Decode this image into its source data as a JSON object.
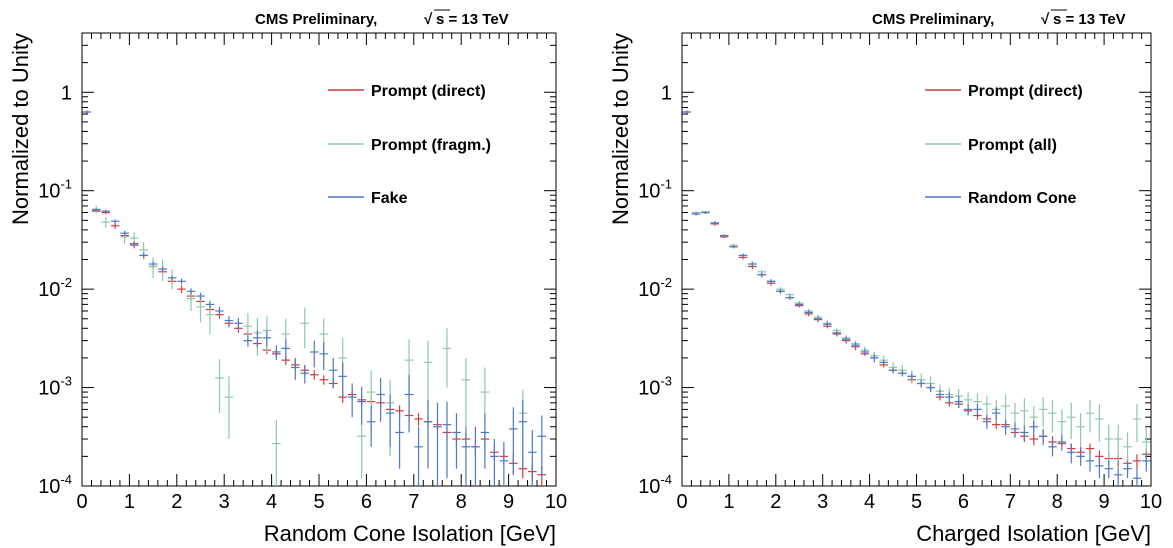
{
  "chart_data": [
    {
      "type": "scatter",
      "header": "CMS Preliminary,",
      "energy_label": "s = 13 TeV",
      "energy_root": "√",
      "xlabel": "Random Cone Isolation [GeV]",
      "ylabel": "Normalized to Unity",
      "xlim": [
        0,
        10
      ],
      "ylim": [
        0.0001,
        4
      ],
      "yscale": "log",
      "xticks": [
        "0",
        "1",
        "2",
        "3",
        "4",
        "5",
        "6",
        "7",
        "8",
        "9",
        "10"
      ],
      "yticks": [
        {
          "base": "10",
          "exp": "-4",
          "value": 0.0001
        },
        {
          "base": "10",
          "exp": "-3",
          "value": 0.001
        },
        {
          "base": "10",
          "exp": "-2",
          "value": 0.01
        },
        {
          "base": "10",
          "exp": "-1",
          "value": 0.1
        },
        {
          "base": "1",
          "exp": "",
          "value": 1
        }
      ],
      "legend_position": "top-right",
      "bin_width": 0.2,
      "series": [
        {
          "name": "Prompt (direct)",
          "color": "#d23b3b",
          "x": [
            0.1,
            0.3,
            0.5,
            0.7,
            0.9,
            1.1,
            1.3,
            1.5,
            1.7,
            1.9,
            2.1,
            2.3,
            2.5,
            2.7,
            2.9,
            3.1,
            3.3,
            3.5,
            3.7,
            3.9,
            4.1,
            4.3,
            4.5,
            4.7,
            4.9,
            5.1,
            5.3,
            5.5,
            5.7,
            5.9,
            6.1,
            6.3,
            6.5,
            6.7,
            6.9,
            7.1,
            7.3,
            7.5,
            7.7,
            7.9,
            8.1,
            8.3,
            8.5,
            8.7,
            8.9,
            9.1,
            9.3,
            9.5,
            9.7
          ],
          "y": [
            0.63,
            0.062,
            0.06,
            0.044,
            0.035,
            0.028,
            0.022,
            0.017,
            0.015,
            0.012,
            0.01,
            0.0085,
            0.0075,
            0.0062,
            0.0055,
            0.0045,
            0.004,
            0.0035,
            0.0028,
            0.0024,
            0.0022,
            0.0019,
            0.0017,
            0.0015,
            0.00135,
            0.0012,
            0.0011,
            0.0008,
            0.00085,
            0.00075,
            0.00072,
            0.0007,
            0.0006,
            0.00058,
            0.00052,
            0.00048,
            0.00045,
            0.00042,
            0.00035,
            0.0003,
            0.0003,
            0.00025,
            0.0003,
            0.00022,
            0.0002,
            0.00017,
            0.00015,
            0.00014,
            0.00013
          ],
          "err": [
            0.02,
            0.002,
            0.002,
            0.003,
            0.002,
            0.002,
            0.002,
            0.0015,
            0.0012,
            0.001,
            0.0009,
            0.0008,
            0.0006,
            0.0005,
            0.0005,
            0.0004,
            0.0004,
            0.0003,
            0.00025,
            0.0002,
            0.0002,
            0.0002,
            0.00018,
            0.00016,
            0.00015,
            0.00013,
            0.00012,
            0.0001,
            0.0001,
            0.0001,
            0.0001,
            0.0001,
            8e-05,
            8e-05,
            7e-05,
            7e-05,
            7e-05,
            6e-05,
            6e-05,
            5e-05,
            5e-05,
            5e-05,
            5e-05,
            4e-05,
            4e-05,
            4e-05,
            3e-05,
            3e-05,
            3e-05
          ]
        },
        {
          "name": "Prompt (fragm.)",
          "color": "#8ec8ad",
          "x": [
            0.3,
            0.5,
            0.9,
            1.1,
            1.3,
            1.5,
            1.7,
            1.9,
            2.3,
            2.5,
            2.7,
            2.9,
            3.1,
            3.5,
            3.7,
            3.9,
            4.1,
            4.3,
            4.7,
            5.1,
            5.5,
            5.9,
            6.1,
            6.5,
            6.9,
            7.3,
            7.7,
            8.1,
            8.5,
            9.3
          ],
          "y": [
            0.065,
            0.048,
            0.034,
            0.033,
            0.025,
            0.017,
            0.016,
            0.013,
            0.008,
            0.0066,
            0.0055,
            0.00125,
            0.0008,
            0.0042,
            0.0036,
            0.0038,
            0.00027,
            0.0035,
            0.0045,
            0.0035,
            0.002,
            0.00032,
            0.0009,
            0.0007,
            0.0019,
            0.0018,
            0.0025,
            0.0012,
            0.0009,
            0.00055
          ],
          "err": [
            0.006,
            0.006,
            0.005,
            0.005,
            0.005,
            0.004,
            0.004,
            0.003,
            0.002,
            0.002,
            0.002,
            0.0007,
            0.0005,
            0.0015,
            0.0015,
            0.0015,
            0.0002,
            0.0015,
            0.002,
            0.0015,
            0.0012,
            0.0002,
            0.0006,
            0.0005,
            0.0012,
            0.0012,
            0.0015,
            0.0008,
            0.0007,
            0.0004
          ]
        },
        {
          "name": "Fake",
          "color": "#4d79c7",
          "x": [
            0.1,
            0.3,
            0.5,
            0.7,
            0.9,
            1.1,
            1.3,
            1.5,
            1.7,
            1.9,
            2.1,
            2.3,
            2.5,
            2.7,
            2.9,
            3.1,
            3.3,
            3.5,
            3.7,
            3.9,
            4.1,
            4.3,
            4.5,
            4.7,
            4.9,
            5.1,
            5.3,
            5.5,
            5.7,
            5.9,
            6.1,
            6.3,
            6.5,
            6.7,
            6.9,
            7.1,
            7.3,
            7.5,
            7.7,
            7.9,
            8.1,
            8.3,
            8.5,
            8.7,
            8.9,
            9.1,
            9.3,
            9.5,
            9.7
          ],
          "y": [
            0.63,
            0.064,
            0.062,
            0.049,
            0.037,
            0.029,
            0.022,
            0.018,
            0.016,
            0.013,
            0.012,
            0.0095,
            0.0085,
            0.007,
            0.006,
            0.0048,
            0.0045,
            0.003,
            0.0032,
            0.0032,
            0.0023,
            0.0025,
            0.0016,
            0.0014,
            0.0023,
            0.0022,
            0.0015,
            0.0013,
            0.0008,
            0.00072,
            0.00045,
            0.00085,
            0.00055,
            0.00035,
            0.00085,
            0.00025,
            0.00045,
            0.0004,
            0.00042,
            0.00035,
            0.00025,
            0.00025,
            0.00035,
            0.0002,
            0.00018,
            0.00038,
            0.00045,
            0.00022,
            0.00032
          ],
          "err": [
            0.02,
            0.002,
            0.002,
            0.002,
            0.002,
            0.0015,
            0.0012,
            0.001,
            0.001,
            0.0008,
            0.0008,
            0.0007,
            0.0007,
            0.0006,
            0.0006,
            0.0005,
            0.0006,
            0.0004,
            0.0006,
            0.0006,
            0.0004,
            0.0006,
            0.0004,
            0.0003,
            0.0007,
            0.0007,
            0.0005,
            0.0005,
            0.0003,
            0.0003,
            0.0002,
            0.0004,
            0.0003,
            0.0002,
            0.0005,
            0.00015,
            0.0003,
            0.0003,
            0.0003,
            0.0002,
            0.00015,
            0.00015,
            0.0002,
            0.0001,
            0.0001,
            0.00025,
            0.0003,
            0.00015,
            0.0002
          ]
        }
      ]
    },
    {
      "type": "scatter",
      "header": "CMS Preliminary,",
      "energy_label": "s = 13 TeV",
      "energy_root": "√",
      "xlabel": "Charged Isolation [GeV]",
      "ylabel": "Normalized to Unity",
      "xlim": [
        0,
        10
      ],
      "ylim": [
        0.0001,
        4
      ],
      "yscale": "log",
      "xticks": [
        "0",
        "1",
        "2",
        "3",
        "4",
        "5",
        "6",
        "7",
        "8",
        "9",
        "10"
      ],
      "yticks": [
        {
          "base": "10",
          "exp": "-4",
          "value": 0.0001
        },
        {
          "base": "10",
          "exp": "-3",
          "value": 0.001
        },
        {
          "base": "10",
          "exp": "-2",
          "value": 0.01
        },
        {
          "base": "10",
          "exp": "-1",
          "value": 0.1
        },
        {
          "base": "1",
          "exp": "",
          "value": 1
        }
      ],
      "legend_position": "top-right",
      "bin_width": 0.2,
      "series": [
        {
          "name": "Prompt (direct)",
          "color": "#d23b3b",
          "x": [
            0.1,
            0.3,
            0.5,
            0.7,
            0.9,
            1.1,
            1.3,
            1.5,
            1.7,
            1.9,
            2.1,
            2.3,
            2.5,
            2.7,
            2.9,
            3.1,
            3.3,
            3.5,
            3.7,
            3.9,
            4.1,
            4.3,
            4.5,
            4.7,
            4.9,
            5.1,
            5.3,
            5.5,
            5.7,
            5.9,
            6.1,
            6.3,
            6.5,
            6.7,
            6.9,
            7.1,
            7.3,
            7.5,
            7.7,
            7.9,
            8.1,
            8.3,
            8.5,
            8.7,
            8.9,
            9.1,
            9.3,
            9.5,
            9.7,
            9.9
          ],
          "y": [
            0.63,
            0.058,
            0.06,
            0.046,
            0.034,
            0.027,
            0.021,
            0.017,
            0.014,
            0.0115,
            0.0095,
            0.0082,
            0.0068,
            0.0056,
            0.0049,
            0.0042,
            0.0035,
            0.003,
            0.0026,
            0.0022,
            0.002,
            0.0017,
            0.0015,
            0.0014,
            0.0012,
            0.0011,
            0.001,
            0.0008,
            0.0007,
            0.00068,
            0.00058,
            0.00052,
            0.00048,
            0.00042,
            0.00042,
            0.00035,
            0.00032,
            0.0003,
            0.00032,
            0.00028,
            0.00027,
            0.00024,
            0.00022,
            0.00024,
            0.0002,
            0.00019,
            0.00019,
            0.00017,
            0.00018,
            0.00021
          ],
          "err": [
            0.02,
            0.002,
            0.002,
            0.002,
            0.001,
            0.001,
            0.001,
            0.001,
            0.0008,
            0.0006,
            0.0005,
            0.0004,
            0.0003,
            0.0003,
            0.0003,
            0.0002,
            0.0002,
            0.0002,
            0.0002,
            0.0001,
            0.0001,
            0.0001,
            0.0001,
            0.0001,
            0.0001,
            8e-05,
            8e-05,
            6e-05,
            6e-05,
            6e-05,
            5e-05,
            5e-05,
            5e-05,
            4e-05,
            4e-05,
            4e-05,
            4e-05,
            4e-05,
            4e-05,
            4e-05,
            4e-05,
            3e-05,
            3e-05,
            3e-05,
            3e-05,
            3e-05,
            3e-05,
            3e-05,
            3e-05,
            3e-05
          ]
        },
        {
          "name": "Prompt (all)",
          "color": "#8ec8ad",
          "x": [
            0.1,
            0.3,
            0.5,
            0.7,
            0.9,
            1.1,
            1.3,
            1.5,
            1.7,
            1.9,
            2.1,
            2.3,
            2.5,
            2.7,
            2.9,
            3.1,
            3.3,
            3.5,
            3.7,
            3.9,
            4.1,
            4.3,
            4.5,
            4.7,
            4.9,
            5.1,
            5.3,
            5.5,
            5.7,
            5.9,
            6.1,
            6.3,
            6.5,
            6.7,
            6.9,
            7.1,
            7.3,
            7.5,
            7.7,
            7.9,
            8.1,
            8.3,
            8.5,
            8.7,
            8.9,
            9.1,
            9.3,
            9.5,
            9.7,
            9.9
          ],
          "y": [
            0.63,
            0.06,
            0.061,
            0.047,
            0.035,
            0.028,
            0.022,
            0.018,
            0.015,
            0.012,
            0.01,
            0.0088,
            0.0072,
            0.006,
            0.0052,
            0.0045,
            0.0038,
            0.0032,
            0.0028,
            0.0024,
            0.0021,
            0.0019,
            0.0016,
            0.0015,
            0.0013,
            0.0012,
            0.0011,
            0.00092,
            0.00085,
            0.00082,
            0.00075,
            0.00072,
            0.00068,
            0.0006,
            0.00065,
            0.00055,
            0.00058,
            0.0005,
            0.0006,
            0.00055,
            0.00045,
            0.0005,
            0.0004,
            0.00055,
            0.00048,
            0.0003,
            0.0003,
            0.00025,
            0.00048,
            0.00028
          ],
          "err": [
            0.02,
            0.002,
            0.002,
            0.002,
            0.001,
            0.001,
            0.001,
            0.001,
            0.0008,
            0.0006,
            0.0005,
            0.0004,
            0.0004,
            0.0003,
            0.0003,
            0.0003,
            0.0002,
            0.0002,
            0.0002,
            0.0002,
            0.0002,
            0.0002,
            0.0002,
            0.0002,
            0.0002,
            0.0002,
            0.0002,
            0.00015,
            0.00015,
            0.00015,
            0.00015,
            0.00015,
            0.00015,
            0.00015,
            0.0002,
            0.00015,
            0.0002,
            0.00015,
            0.0002,
            0.0002,
            0.00015,
            0.0002,
            0.00015,
            0.0002,
            0.0002,
            0.00012,
            0.00012,
            0.0001,
            0.0002,
            0.00012
          ]
        },
        {
          "name": "Random Cone",
          "color": "#4d79c7",
          "x": [
            0.1,
            0.3,
            0.5,
            0.7,
            0.9,
            1.1,
            1.3,
            1.5,
            1.7,
            1.9,
            2.1,
            2.3,
            2.5,
            2.7,
            2.9,
            3.1,
            3.3,
            3.5,
            3.7,
            3.9,
            4.1,
            4.3,
            4.5,
            4.7,
            4.9,
            5.1,
            5.3,
            5.5,
            5.7,
            5.9,
            6.1,
            6.3,
            6.5,
            6.7,
            6.9,
            7.1,
            7.3,
            7.5,
            7.7,
            7.9,
            8.1,
            8.3,
            8.5,
            8.7,
            8.9,
            9.1,
            9.3,
            9.5,
            9.7,
            9.9
          ],
          "y": [
            0.63,
            0.058,
            0.06,
            0.047,
            0.035,
            0.027,
            0.022,
            0.018,
            0.014,
            0.012,
            0.0095,
            0.0082,
            0.007,
            0.0058,
            0.005,
            0.0044,
            0.0036,
            0.0031,
            0.0027,
            0.0023,
            0.002,
            0.0018,
            0.0015,
            0.0014,
            0.0013,
            0.0011,
            0.001,
            0.00085,
            0.0008,
            0.00072,
            0.0006,
            0.0006,
            0.00045,
            0.00055,
            0.0004,
            0.00038,
            0.00035,
            0.0004,
            0.00032,
            0.00025,
            0.00028,
            0.00022,
            0.0002,
            0.00018,
            0.00016,
            0.00015,
            0.00013,
            0.00015,
            0.00012,
            0.00018
          ],
          "err": [
            0.02,
            0.002,
            0.002,
            0.002,
            0.001,
            0.001,
            0.001,
            0.001,
            0.0008,
            0.0006,
            0.0005,
            0.0004,
            0.0003,
            0.0003,
            0.0003,
            0.0003,
            0.0002,
            0.0002,
            0.0002,
            0.0002,
            0.0002,
            0.0001,
            0.0001,
            0.0001,
            0.0001,
            0.0001,
            0.0001,
            0.0001,
            0.0001,
            0.0001,
            8e-05,
            8e-05,
            7e-05,
            8e-05,
            7e-05,
            6e-05,
            6e-05,
            6e-05,
            6e-05,
            5e-05,
            5e-05,
            5e-05,
            4e-05,
            4e-05,
            4e-05,
            3e-05,
            3e-05,
            3e-05,
            3e-05,
            4e-05
          ]
        }
      ]
    }
  ]
}
